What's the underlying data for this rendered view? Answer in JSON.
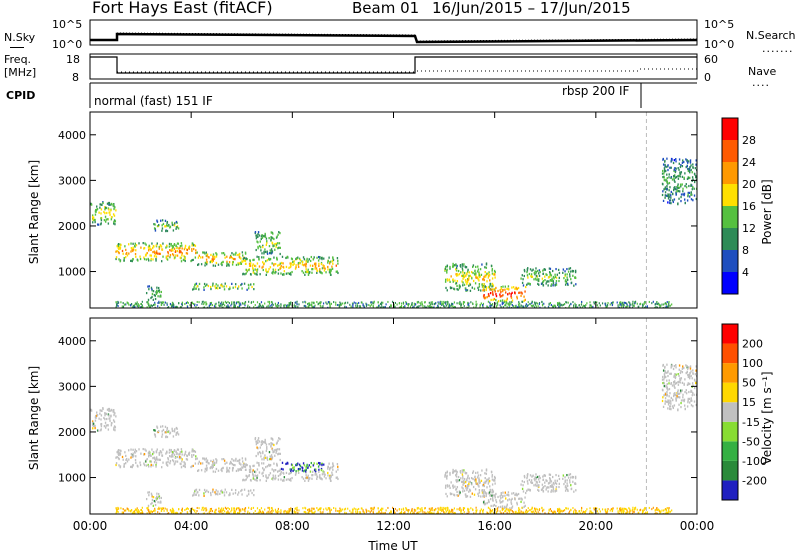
{
  "header": {
    "station": "Fort Hays East (fitACF)",
    "beam": "Beam 01",
    "date_range": "16/Jun/2015 – 17/Jun/2015"
  },
  "top_panels": {
    "nsky_label": "N.Sky",
    "nsearch_label": "N.Search",
    "noise_ticks": [
      "10^5",
      "10^0"
    ],
    "freq_label": "Freq.",
    "freq_unit": "[MHz]",
    "freq_ticks": [
      "18",
      "8"
    ],
    "nave_label": "Nave",
    "nave_ticks": [
      "60",
      "0"
    ],
    "cpid_label": "CPID",
    "cpid_mode1": "normal (fast) 151 IF",
    "cpid_mode2": "rbsp 200 IF",
    "cpid_switch_hour": 22
  },
  "chart_data": [
    {
      "type": "heatmap",
      "panel": "power",
      "ylabel": "Slant Range [km]",
      "xlabel": "",
      "xlim": [
        0,
        24
      ],
      "ylim": [
        200,
        4500
      ],
      "yticks": [
        "1000",
        "2000",
        "3000",
        "4000"
      ],
      "colorbar_label": "Power [dB]",
      "colorbar_ticks": [
        "4",
        "8",
        "12",
        "16",
        "20",
        "24",
        "28"
      ],
      "colorscale": [
        "#0000ff",
        "#1f4fbf",
        "#2e8b57",
        "#55c040",
        "#ffe000",
        "#ff9900",
        "#ff5a00",
        "#ff0000"
      ]
    },
    {
      "type": "heatmap",
      "panel": "velocity",
      "ylabel": "Slant Range [km]",
      "xlabel": "Time UT",
      "xlim": [
        0,
        24
      ],
      "ylim": [
        200,
        4500
      ],
      "yticks": [
        "1000",
        "2000",
        "3000",
        "4000"
      ],
      "xticks": [
        "00:00",
        "04:00",
        "08:00",
        "12:00",
        "16:00",
        "20:00",
        "00:00"
      ],
      "colorbar_label": "Velocity [m s⁻¹]",
      "colorbar_ticks": [
        "200",
        "100",
        "50",
        "15",
        "-15",
        "-50",
        "-100",
        "-200"
      ],
      "colorscale": [
        "#2020c0",
        "#2a8a3a",
        "#34b043",
        "#88dd33",
        "#c0c0c0",
        "#ffd800",
        "#ff9a00",
        "#ff5000",
        "#ff0000"
      ]
    }
  ]
}
